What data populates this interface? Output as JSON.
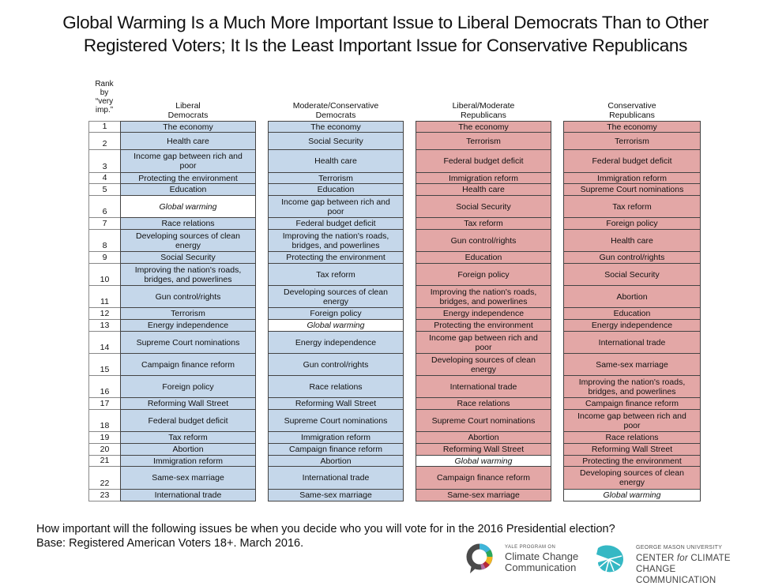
{
  "title_line1": "Global Warming Is a Much More Important Issue to Liberal Democrats Than to Other",
  "title_line2": "Registered Voters; It Is the Least Important Issue for Conservative Republicans",
  "rank_header": [
    "Rank",
    "by",
    "“very",
    "imp.”"
  ],
  "footnote_line1": "How important will the following issues be when you decide who you will vote for in the 2016 Presidential election?",
  "footnote_line2": "Base: Registered American Voters 18+. March 2016.",
  "logos": {
    "yale_small": "YALE PROGRAM ON",
    "yale_line1": "Climate Change",
    "yale_line2": "Communication",
    "gmu_small": "GEORGE MASON UNIVERSITY",
    "gmu_line1_a": "CENTER ",
    "gmu_line1_b": "for",
    "gmu_line1_c": " CLIMATE CHANGE",
    "gmu_line2": "COMMUNICATION"
  },
  "colors": {
    "democrat_fill": "#c5d7ea",
    "republican_fill": "#e3a7a6",
    "highlight_fill": "#ffffff"
  },
  "chart_data": {
    "type": "table",
    "title": "Global Warming Is a Much More Important Issue to Liberal Democrats Than to Other Registered Voters; It Is the Least Important Issue for Conservative Republicans",
    "row_label_header": "Rank by “very imp.”",
    "ranks": [
      1,
      2,
      3,
      4,
      5,
      6,
      7,
      8,
      9,
      10,
      11,
      12,
      13,
      14,
      15,
      16,
      17,
      18,
      19,
      20,
      21,
      22,
      23
    ],
    "highlight_item": "Global warming",
    "columns": [
      {
        "name_line1": "Liberal",
        "name_line2": "Democrats",
        "party": "democrat",
        "items": [
          "The economy",
          "Health care",
          "Income gap between rich and poor",
          "Protecting the environment",
          "Education",
          "Global warming",
          "Race relations",
          "Developing sources of clean energy",
          "Social Security",
          "Improving the nation's roads, bridges, and powerlines",
          "Gun control/rights",
          "Terrorism",
          "Energy independence",
          "Supreme Court nominations",
          "Campaign finance reform",
          "Foreign policy",
          "Reforming Wall Street",
          "Federal budget deficit",
          "Tax reform",
          "Abortion",
          "Immigration reform",
          "Same-sex marriage",
          "International trade"
        ]
      },
      {
        "name_line1": "Moderate/Conservative",
        "name_line2": "Democrats",
        "party": "democrat",
        "items": [
          "The economy",
          "Social Security",
          "Health care",
          "Terrorism",
          "Education",
          "Income gap between rich and poor",
          "Federal budget deficit",
          "Improving the nation's roads, bridges, and powerlines",
          "Protecting the environment",
          "Tax reform",
          "Developing sources of clean energy",
          "Foreign policy",
          "Global warming",
          "Energy independence",
          "Gun control/rights",
          "Race relations",
          "Reforming Wall Street",
          "Supreme Court nominations",
          "Immigration reform",
          "Campaign finance reform",
          "Abortion",
          "International trade",
          "Same-sex marriage"
        ]
      },
      {
        "name_line1": "Liberal/Moderate",
        "name_line2": "Republicans",
        "party": "republican",
        "items": [
          "The economy",
          "Terrorism",
          "Federal budget deficit",
          "Immigration reform",
          "Health care",
          "Social Security",
          "Tax reform",
          "Gun control/rights",
          "Education",
          "Foreign policy",
          "Improving the nation's roads, bridges, and powerlines",
          "Energy independence",
          "Protecting the environment",
          "Income gap between rich and poor",
          "Developing sources of clean energy",
          "International trade",
          "Race relations",
          "Supreme Court nominations",
          "Abortion",
          "Reforming Wall Street",
          "Global warming",
          "Campaign finance reform",
          "Same-sex marriage"
        ]
      },
      {
        "name_line1": "Conservative",
        "name_line2": "Republicans",
        "party": "republican",
        "items": [
          "The economy",
          "Terrorism",
          "Federal budget deficit",
          "Immigration reform",
          "Supreme Court nominations",
          "Tax reform",
          "Foreign policy",
          "Health care",
          "Gun control/rights",
          "Social Security",
          "Abortion",
          "Education",
          "Energy independence",
          "International trade",
          "Same-sex marriage",
          "Improving the nation's roads, bridges, and powerlines",
          "Campaign finance reform",
          "Income gap between rich and poor",
          "Race relations",
          "Reforming Wall Street",
          "Protecting the environment",
          "Developing sources of clean energy",
          "Global warming"
        ]
      }
    ]
  }
}
